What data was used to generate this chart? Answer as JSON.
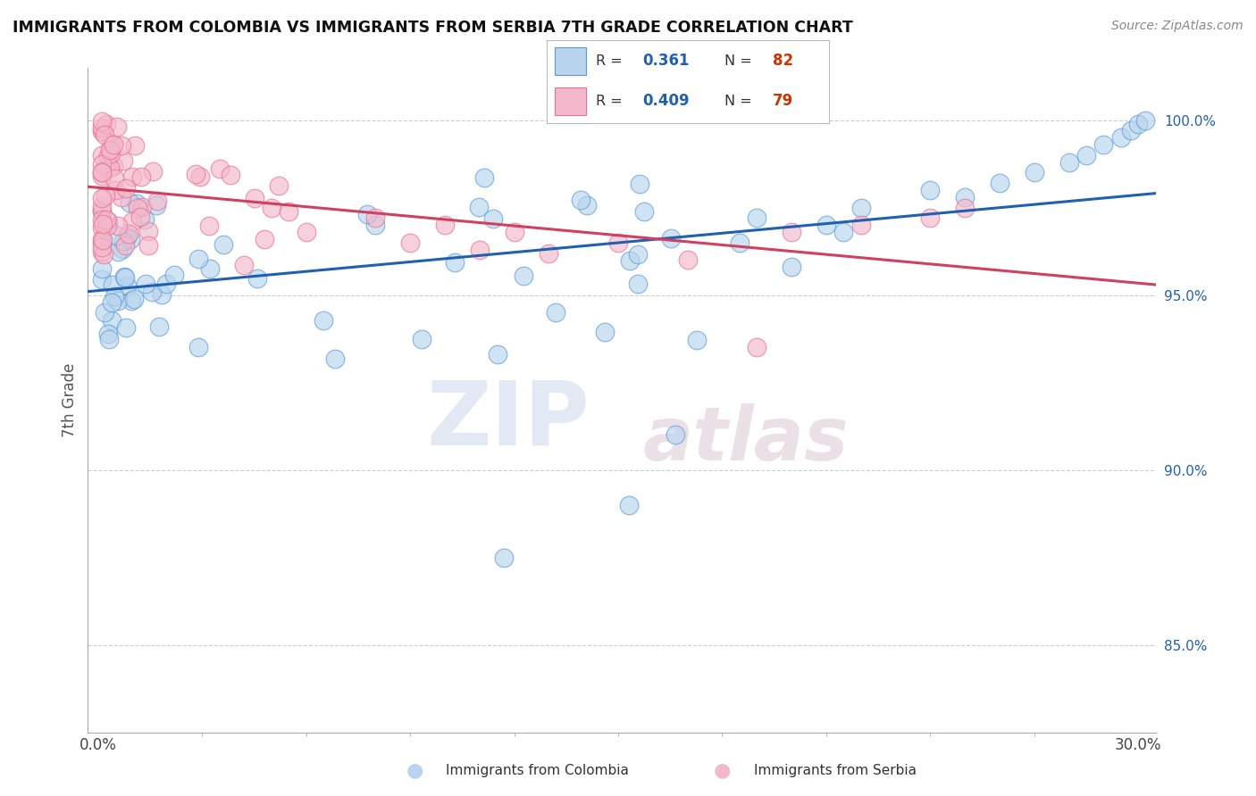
{
  "title": "IMMIGRANTS FROM COLOMBIA VS IMMIGRANTS FROM SERBIA 7TH GRADE CORRELATION CHART",
  "source": "Source: ZipAtlas.com",
  "ylabel": "7th Grade",
  "ylim": [
    82.5,
    101.5
  ],
  "xlim": [
    -0.003,
    0.305
  ],
  "colombia_color": "#b8d4ee",
  "serbia_color": "#f4b8cc",
  "colombia_edge_color": "#5b9bd5",
  "serbia_edge_color": "#e87090",
  "colombia_line_color": "#2060b0",
  "serbia_line_color": "#d04060",
  "legend_R1": "0.361",
  "legend_N1": "82",
  "legend_R2": "0.409",
  "legend_N2": "79",
  "legend_label1": "Immigrants from Colombia",
  "legend_label2": "Immigrants from Serbia",
  "stat_color": "#2060b0",
  "n_color": "#cc3300"
}
